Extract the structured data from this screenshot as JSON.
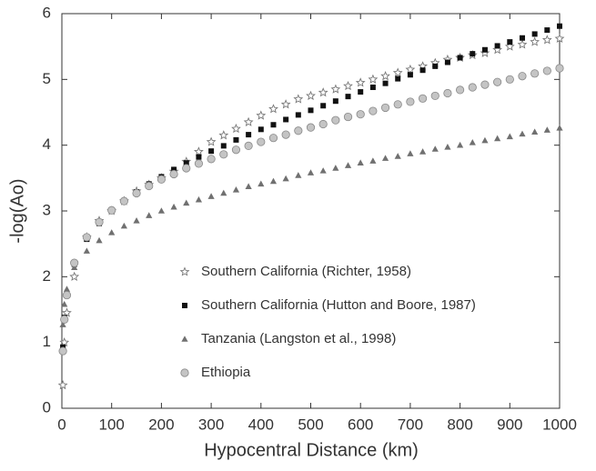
{
  "chart_data": {
    "type": "scatter",
    "x_label": "Hypocentral Distance (km)",
    "y_label": "-log(Ao)",
    "x": [
      2,
      5,
      10,
      25,
      50,
      75,
      100,
      125,
      150,
      175,
      200,
      225,
      250,
      275,
      300,
      325,
      350,
      375,
      400,
      425,
      450,
      475,
      500,
      525,
      550,
      575,
      600,
      625,
      650,
      675,
      700,
      725,
      750,
      775,
      800,
      825,
      850,
      875,
      900,
      925,
      950,
      975,
      1000
    ],
    "series": [
      {
        "name": "Southern California (Richter, 1958)",
        "color": "#777777",
        "marker": "star",
        "values": [
          0.35,
          1.0,
          1.45,
          2.0,
          2.6,
          2.85,
          3.0,
          3.15,
          3.3,
          3.4,
          3.5,
          3.6,
          3.75,
          3.9,
          4.05,
          4.15,
          4.25,
          4.35,
          4.45,
          4.55,
          4.62,
          4.7,
          4.75,
          4.8,
          4.85,
          4.9,
          4.95,
          5.0,
          5.05,
          5.1,
          5.15,
          5.2,
          5.25,
          5.3,
          5.33,
          5.37,
          5.4,
          5.45,
          5.5,
          5.53,
          5.57,
          5.6,
          5.62
        ]
      },
      {
        "name": "Southern California (Hutton and Boore, 1987)",
        "color": "#111111",
        "marker": "square",
        "values": [
          0.93,
          1.38,
          1.72,
          2.19,
          2.57,
          2.81,
          3.0,
          3.15,
          3.29,
          3.41,
          3.52,
          3.63,
          3.73,
          3.82,
          3.91,
          3.99,
          4.08,
          4.16,
          4.24,
          4.31,
          4.39,
          4.46,
          4.53,
          4.6,
          4.67,
          4.74,
          4.81,
          4.88,
          4.94,
          5.01,
          5.07,
          5.14,
          5.2,
          5.26,
          5.33,
          5.39,
          5.45,
          5.51,
          5.57,
          5.63,
          5.69,
          5.75,
          5.81
        ]
      },
      {
        "name": "Tanzania (Langston et al., 1998)",
        "color": "#707070",
        "marker": "triangle",
        "values": [
          1.27,
          1.58,
          1.81,
          2.14,
          2.39,
          2.55,
          2.67,
          2.77,
          2.85,
          2.93,
          3.0,
          3.06,
          3.12,
          3.17,
          3.22,
          3.27,
          3.32,
          3.37,
          3.41,
          3.45,
          3.49,
          3.54,
          3.58,
          3.61,
          3.65,
          3.69,
          3.73,
          3.76,
          3.8,
          3.83,
          3.87,
          3.9,
          3.94,
          3.97,
          4.0,
          4.04,
          4.07,
          4.1,
          4.13,
          4.17,
          4.2,
          4.23,
          4.26
        ]
      },
      {
        "name": "Ethiopia",
        "color": "#c4c4c4",
        "marker": "circle",
        "values": [
          0.87,
          1.35,
          1.72,
          2.21,
          2.6,
          2.83,
          3.01,
          3.15,
          3.27,
          3.38,
          3.48,
          3.56,
          3.65,
          3.72,
          3.79,
          3.86,
          3.93,
          3.99,
          4.05,
          4.11,
          4.16,
          4.22,
          4.27,
          4.32,
          4.38,
          4.43,
          4.47,
          4.52,
          4.57,
          4.62,
          4.66,
          4.71,
          4.75,
          4.79,
          4.84,
          4.88,
          4.92,
          4.96,
          5.0,
          5.05,
          5.09,
          5.13,
          5.17
        ]
      }
    ],
    "xlim": [
      0,
      1000
    ],
    "xticks": [
      0,
      100,
      200,
      300,
      400,
      500,
      600,
      700,
      800,
      900,
      1000
    ],
    "ylim": [
      0,
      6
    ],
    "yticks": [
      0,
      1,
      2,
      3,
      4,
      5,
      6
    ],
    "legend": "lower center",
    "grid": false
  }
}
